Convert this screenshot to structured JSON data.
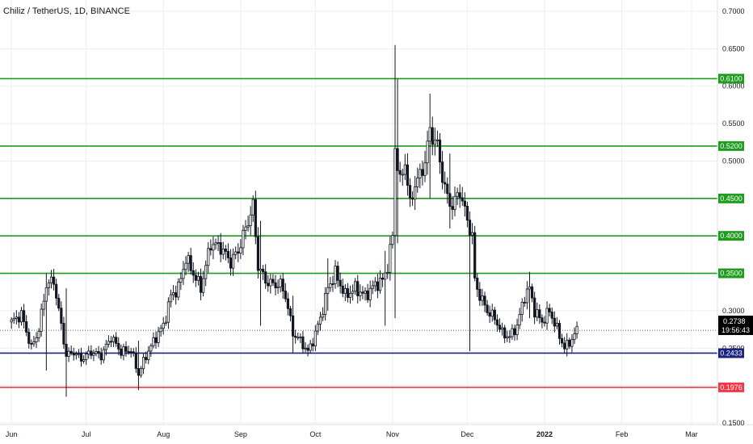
{
  "header": {
    "title": "Chiliz / TetherUS, 1D, BINANCE"
  },
  "price_tag": {
    "value": "0.2738",
    "countdown": "19:56:43"
  },
  "colors": {
    "background": "#ffffff",
    "grid": "#eeeeee",
    "candle": "#131722",
    "support_green": "#1e9c1e",
    "support_blue": "#1a237e",
    "support_red": "#f23645",
    "tag_black": "#000000"
  },
  "chart_data": {
    "type": "candlestick",
    "title": "Chiliz / TetherUS, 1D, BINANCE",
    "xlabel": "",
    "ylabel": "",
    "ylim": [
      0.13,
      0.72
    ],
    "y_ticks": [
      0.15,
      0.2,
      0.25,
      0.3,
      0.35,
      0.4,
      0.45,
      0.5,
      0.55,
      0.6,
      0.65,
      0.7
    ],
    "y_tick_labels": [
      "0.1500",
      "0.2000",
      "0.2500",
      "0.3000",
      "0.3500",
      "0.4000",
      "0.4500",
      "0.5000",
      "0.5500",
      "0.6000",
      "0.6500",
      "0.7000"
    ],
    "x_ticks": [
      {
        "label": "Jun",
        "day": 0,
        "bold": false
      },
      {
        "label": "Jul",
        "day": 30,
        "bold": false
      },
      {
        "label": "Aug",
        "day": 61,
        "bold": false
      },
      {
        "label": "Sep",
        "day": 92,
        "bold": false
      },
      {
        "label": "Oct",
        "day": 122,
        "bold": false
      },
      {
        "label": "Nov",
        "day": 153,
        "bold": false
      },
      {
        "label": "Dec",
        "day": 183,
        "bold": false
      },
      {
        "label": "2022",
        "day": 214,
        "bold": true
      },
      {
        "label": "Feb",
        "day": 245,
        "bold": false
      },
      {
        "label": "Mar",
        "day": 273,
        "bold": false
      }
    ],
    "x_range": [
      -2,
      286
    ],
    "grid": true,
    "horizontal_levels": [
      {
        "value": 0.61,
        "label": "0.6100",
        "color": "#1e9c1e"
      },
      {
        "value": 0.52,
        "label": "0.5200",
        "color": "#1e9c1e"
      },
      {
        "value": 0.45,
        "label": "0.4500",
        "color": "#1e9c1e"
      },
      {
        "value": 0.4,
        "label": "0.4000",
        "color": "#1e9c1e"
      },
      {
        "value": 0.35,
        "label": "0.3500",
        "color": "#1e9c1e"
      },
      {
        "value": 0.2433,
        "label": "0.2433",
        "color": "#1a237e"
      },
      {
        "value": 0.1976,
        "label": "0.1976",
        "color": "#f23645"
      }
    ],
    "last_price": 0.2738,
    "anchors": [
      [
        0,
        0.285
      ],
      [
        4,
        0.295
      ],
      [
        8,
        0.25
      ],
      [
        11,
        0.275
      ],
      [
        14,
        0.335
      ],
      [
        17,
        0.34
      ],
      [
        20,
        0.28
      ],
      [
        22,
        0.24
      ],
      [
        25,
        0.245
      ],
      [
        28,
        0.235
      ],
      [
        32,
        0.245
      ],
      [
        36,
        0.24
      ],
      [
        40,
        0.265
      ],
      [
        44,
        0.245
      ],
      [
        48,
        0.248
      ],
      [
        51,
        0.215
      ],
      [
        54,
        0.24
      ],
      [
        58,
        0.265
      ],
      [
        61,
        0.28
      ],
      [
        64,
        0.32
      ],
      [
        67,
        0.33
      ],
      [
        70,
        0.37
      ],
      [
        73,
        0.35
      ],
      [
        76,
        0.33
      ],
      [
        80,
        0.39
      ],
      [
        84,
        0.385
      ],
      [
        88,
        0.365
      ],
      [
        91,
        0.38
      ],
      [
        94,
        0.41
      ],
      [
        97,
        0.44
      ],
      [
        99,
        0.36
      ],
      [
        102,
        0.34
      ],
      [
        105,
        0.335
      ],
      [
        108,
        0.335
      ],
      [
        110,
        0.32
      ],
      [
        113,
        0.27
      ],
      [
        116,
        0.26
      ],
      [
        119,
        0.245
      ],
      [
        121,
        0.26
      ],
      [
        124,
        0.29
      ],
      [
        127,
        0.33
      ],
      [
        130,
        0.35
      ],
      [
        134,
        0.32
      ],
      [
        138,
        0.33
      ],
      [
        142,
        0.32
      ],
      [
        146,
        0.335
      ],
      [
        149,
        0.34
      ],
      [
        151,
        0.36
      ],
      [
        153,
        0.4
      ],
      [
        154,
        0.52
      ],
      [
        156,
        0.47
      ],
      [
        158,
        0.5
      ],
      [
        160,
        0.44
      ],
      [
        162,
        0.47
      ],
      [
        164,
        0.48
      ],
      [
        166,
        0.5
      ],
      [
        168,
        0.54
      ],
      [
        171,
        0.52
      ],
      [
        173,
        0.48
      ],
      [
        175,
        0.45
      ],
      [
        177,
        0.44
      ],
      [
        180,
        0.46
      ],
      [
        183,
        0.42
      ],
      [
        185,
        0.4
      ],
      [
        186,
        0.34
      ],
      [
        188,
        0.32
      ],
      [
        191,
        0.3
      ],
      [
        194,
        0.29
      ],
      [
        197,
        0.27
      ],
      [
        200,
        0.265
      ],
      [
        203,
        0.28
      ],
      [
        206,
        0.32
      ],
      [
        208,
        0.33
      ],
      [
        210,
        0.3
      ],
      [
        213,
        0.285
      ],
      [
        216,
        0.3
      ],
      [
        219,
        0.275
      ],
      [
        222,
        0.25
      ],
      [
        225,
        0.262
      ],
      [
        227,
        0.274
      ]
    ],
    "spikes": [
      {
        "day": 154,
        "high": 0.655,
        "low": 0.29
      },
      {
        "day": 155,
        "high": 0.61,
        "low": 0.39
      },
      {
        "day": 168,
        "high": 0.59,
        "low": 0.45
      },
      {
        "day": 184,
        "high": 0.42,
        "low": 0.246
      },
      {
        "day": 100,
        "high": 0.42,
        "low": 0.28
      },
      {
        "day": 22,
        "high": 0.33,
        "low": 0.185
      },
      {
        "day": 14,
        "high": 0.35,
        "low": 0.22
      },
      {
        "day": 51,
        "high": 0.26,
        "low": 0.194
      },
      {
        "day": 113,
        "high": 0.32,
        "low": 0.244
      },
      {
        "day": 127,
        "high": 0.37,
        "low": 0.3
      },
      {
        "day": 150,
        "high": 0.38,
        "low": 0.28
      },
      {
        "day": 176,
        "high": 0.51,
        "low": 0.41
      },
      {
        "day": 208,
        "high": 0.352,
        "low": 0.29
      },
      {
        "day": 223,
        "high": 0.27,
        "low": 0.239
      }
    ]
  }
}
